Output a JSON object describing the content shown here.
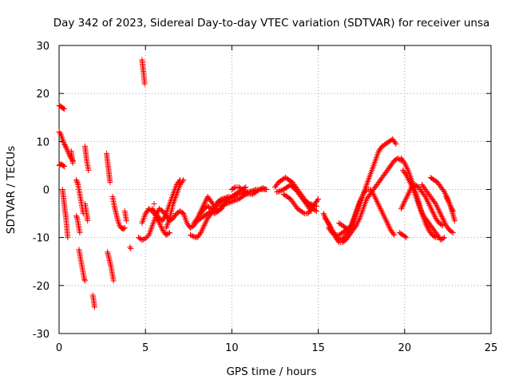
{
  "chart_data": {
    "type": "scatter",
    "title": "Day 342 of 2023, Sidereal Day-to-day VTEC variation (SDTVAR) for receiver unsa",
    "xlabel": "GPS time / hours",
    "ylabel": "SDTVAR / TECUs",
    "xlim": [
      0,
      25
    ],
    "ylim": [
      -30,
      30
    ],
    "x_ticks": [
      "0",
      "5",
      "10",
      "15",
      "20",
      "25"
    ],
    "y_ticks": [
      "30",
      "20",
      "10",
      "0",
      "-10",
      "-20",
      "-30"
    ],
    "grid": true,
    "marker": "+",
    "series": [
      {
        "name": "SDTVAR",
        "color": "#ff0000",
        "segments": [
          {
            "x": [
              0.0,
              0.1,
              0.2,
              0.3
            ],
            "y": [
              17.5,
              17.3,
              17.0,
              16.8
            ]
          },
          {
            "x": [
              0.0,
              0.1,
              0.2,
              0.3,
              0.4,
              0.5,
              0.6,
              0.7,
              0.8
            ],
            "y": [
              12.0,
              11.5,
              10.5,
              9.5,
              8.8,
              8.0,
              7.2,
              6.5,
              6.0
            ]
          },
          {
            "x": [
              0.0,
              0.1,
              0.2,
              0.3
            ],
            "y": [
              5.0,
              5.3,
              5.1,
              4.8
            ]
          },
          {
            "x": [
              0.2,
              0.25,
              0.3,
              0.35,
              0.4,
              0.45,
              0.5
            ],
            "y": [
              0.0,
              -1.5,
              -3.0,
              -4.5,
              -6.0,
              -8.0,
              -10.0
            ]
          },
          {
            "x": [
              0.7,
              0.75,
              0.8
            ],
            "y": [
              8.0,
              6.5,
              5.5
            ]
          },
          {
            "x": [
              1.0,
              1.05,
              1.1,
              1.15,
              1.2,
              1.25,
              1.3,
              1.35,
              1.4
            ],
            "y": [
              2.0,
              1.5,
              1.0,
              0.0,
              -1.0,
              -2.0,
              -3.0,
              -4.0,
              -5.0
            ]
          },
          {
            "x": [
              1.0,
              1.05,
              1.1,
              1.15,
              1.2
            ],
            "y": [
              -5.5,
              -6.0,
              -7.0,
              -8.0,
              -9.0
            ]
          },
          {
            "x": [
              1.15,
              1.2,
              1.25,
              1.3,
              1.35,
              1.4,
              1.45,
              1.5
            ],
            "y": [
              -12.5,
              -13.5,
              -14.5,
              -15.5,
              -16.5,
              -17.5,
              -18.5,
              -19.0
            ]
          },
          {
            "x": [
              1.5,
              1.55,
              1.6,
              1.65,
              1.7
            ],
            "y": [
              9.0,
              7.5,
              6.0,
              5.0,
              4.0
            ]
          },
          {
            "x": [
              1.5,
              1.55,
              1.6,
              1.65
            ],
            "y": [
              -3.0,
              -4.0,
              -5.0,
              -6.5
            ]
          },
          {
            "x": [
              1.95,
              2.0,
              2.05
            ],
            "y": [
              -22.0,
              -23.0,
              -24.5
            ]
          },
          {
            "x": [
              2.75,
              2.8,
              2.85,
              2.9,
              2.95
            ],
            "y": [
              7.5,
              6.0,
              4.5,
              3.0,
              1.5
            ]
          },
          {
            "x": [
              2.8,
              2.9,
              3.0,
              3.05,
              3.1,
              3.15
            ],
            "y": [
              -13.0,
              -14.5,
              -16.0,
              -17.0,
              -18.0,
              -19.0
            ]
          },
          {
            "x": [
              3.1,
              3.15,
              3.2,
              3.3,
              3.4,
              3.5,
              3.6,
              3.7,
              3.8
            ],
            "y": [
              -1.5,
              -2.5,
              -3.5,
              -5.0,
              -6.5,
              -7.5,
              -8.0,
              -8.2,
              -8.0
            ]
          },
          {
            "x": [
              3.8,
              3.85,
              3.9
            ],
            "y": [
              -4.5,
              -5.5,
              -6.5
            ]
          },
          {
            "x": [
              4.1,
              4.15
            ],
            "y": [
              -12.0,
              -12.3
            ]
          },
          {
            "x": [
              4.8,
              4.85,
              4.9,
              4.95
            ],
            "y": [
              27.0,
              25.5,
              24.0,
              22.0
            ]
          },
          {
            "x": [
              4.6,
              4.8,
              5.0,
              5.2,
              5.4,
              5.6,
              5.8,
              6.0,
              6.2,
              6.4,
              6.6,
              6.8,
              7.0,
              7.2
            ],
            "y": [
              -10.0,
              -10.5,
              -10.2,
              -9.5,
              -7.5,
              -5.5,
              -4.0,
              -4.5,
              -5.5,
              -6.5,
              -6.0,
              -5.0,
              -4.5,
              -5.0
            ]
          },
          {
            "x": [
              4.8,
              5.0,
              5.2,
              5.4,
              5.6,
              5.8,
              6.0,
              6.2,
              6.4
            ],
            "y": [
              -7.0,
              -5.0,
              -4.0,
              -4.5,
              -5.5,
              -7.0,
              -8.5,
              -9.5,
              -9.0
            ]
          },
          {
            "x": [
              5.4,
              5.6,
              5.8,
              6.0,
              6.2,
              6.4,
              6.6,
              6.8,
              7.0
            ],
            "y": [
              -4.0,
              -5.0,
              -6.0,
              -6.5,
              -5.0,
              -3.0,
              -1.0,
              1.0,
              2.0
            ]
          },
          {
            "x": [
              6.2,
              6.4,
              6.6,
              6.8,
              7.0,
              7.2
            ],
            "y": [
              -8.0,
              -6.0,
              -3.0,
              -1.0,
              1.0,
              2.0
            ]
          },
          {
            "x": [
              5.5
            ],
            "y": [
              -3.0
            ]
          },
          {
            "x": [
              7.2,
              7.4,
              7.6,
              7.8,
              8.0,
              8.2,
              8.4,
              8.6,
              8.8,
              9.0,
              9.2,
              9.4,
              9.6,
              9.8,
              10.0,
              10.2,
              10.4,
              10.6,
              10.8,
              11.0,
              11.2,
              11.4,
              11.6,
              11.8,
              12.0
            ],
            "y": [
              -5.0,
              -7.0,
              -8.0,
              -7.5,
              -6.5,
              -6.0,
              -5.5,
              -5.0,
              -4.5,
              -3.5,
              -2.5,
              -2.0,
              -1.8,
              -1.5,
              -1.5,
              -1.2,
              -1.0,
              -0.8,
              -0.5,
              -0.5,
              -0.3,
              0.0,
              0.0,
              0.0,
              0.0
            ]
          },
          {
            "x": [
              7.6,
              7.8,
              8.0,
              8.2,
              8.4,
              8.6,
              8.8,
              9.0,
              9.2,
              9.4,
              9.6,
              9.8,
              10.0,
              10.2
            ],
            "y": [
              -9.5,
              -9.8,
              -10.0,
              -9.0,
              -7.5,
              -6.0,
              -5.0,
              -4.0,
              -3.0,
              -2.5,
              -2.2,
              -2.0,
              -1.8,
              -1.5
            ]
          },
          {
            "x": [
              7.8,
              8.0,
              8.2,
              8.4,
              8.6,
              8.8,
              9.0,
              9.2,
              9.4,
              9.6,
              9.8,
              10.0,
              10.2,
              10.4,
              10.6,
              10.8
            ],
            "y": [
              -7.0,
              -6.0,
              -4.5,
              -3.0,
              -1.5,
              -2.5,
              -3.5,
              -4.5,
              -4.0,
              -3.0,
              -2.0,
              -1.5,
              -1.0,
              -0.5,
              0.0,
              0.5
            ]
          },
          {
            "x": [
              8.2,
              8.4,
              8.6,
              8.8,
              9.0,
              9.2,
              9.4,
              9.6,
              9.8,
              10.0,
              10.2,
              10.4,
              10.6,
              10.8,
              11.0
            ],
            "y": [
              -5.0,
              -4.0,
              -3.5,
              -4.0,
              -5.0,
              -4.5,
              -3.5,
              -3.0,
              -2.8,
              -2.5,
              -2.2,
              -2.0,
              -1.5,
              -1.0,
              -0.8
            ]
          },
          {
            "x": [
              10.0,
              10.2,
              10.4,
              10.6,
              10.8,
              11.0,
              11.2,
              11.4,
              11.6,
              11.8,
              12.0
            ],
            "y": [
              0.0,
              0.5,
              0.5,
              0.0,
              -0.5,
              -0.8,
              -1.0,
              -0.5,
              0.0,
              0.3,
              0.0
            ]
          },
          {
            "x": [
              12.5,
              12.7,
              12.9,
              13.1,
              13.3,
              13.5,
              13.7,
              13.9,
              14.1,
              14.3,
              14.5,
              14.7,
              14.9
            ],
            "y": [
              0.5,
              1.5,
              2.0,
              2.5,
              2.0,
              1.5,
              0.5,
              -0.5,
              -1.5,
              -2.5,
              -3.5,
              -4.0,
              -4.5
            ]
          },
          {
            "x": [
              12.6,
              12.8,
              13.0,
              13.2,
              13.4,
              13.6,
              13.8,
              14.0,
              14.2,
              14.4,
              14.6
            ],
            "y": [
              -0.5,
              -0.3,
              0.0,
              0.5,
              1.0,
              0.5,
              -0.5,
              -1.5,
              -2.5,
              -3.5,
              -4.5
            ]
          },
          {
            "x": [
              13.0,
              13.2,
              13.4,
              13.6,
              13.8,
              14.0,
              14.2,
              14.4,
              14.6,
              14.8,
              15.0
            ],
            "y": [
              -1.0,
              -1.5,
              -2.0,
              -3.0,
              -4.0,
              -4.5,
              -5.0,
              -5.0,
              -4.0,
              -3.0,
              -2.0
            ]
          },
          {
            "x": [
              13.5,
              13.7,
              13.9,
              14.1,
              14.3,
              14.5,
              14.7,
              14.9
            ],
            "y": [
              0.5,
              0.0,
              -1.0,
              -2.0,
              -2.5,
              -3.0,
              -3.2,
              -3.5
            ]
          },
          {
            "x": [
              15.3,
              15.5,
              15.7,
              15.9,
              16.1,
              16.3,
              16.5,
              16.7,
              16.9,
              17.1,
              17.3,
              17.5,
              17.7,
              17.9,
              18.1,
              18.3,
              18.5,
              18.7,
              18.9,
              19.1,
              19.3,
              19.5
            ],
            "y": [
              -5.0,
              -6.5,
              -8.0,
              -9.0,
              -10.0,
              -10.5,
              -10.0,
              -9.0,
              -8.0,
              -6.0,
              -4.0,
              -2.0,
              0.0,
              2.0,
              4.0,
              6.0,
              8.0,
              9.0,
              9.5,
              10.0,
              10.5,
              9.5
            ]
          },
          {
            "x": [
              15.4,
              15.6,
              15.8,
              16.0,
              16.2,
              16.4,
              16.6,
              16.8,
              17.0,
              17.2,
              17.4,
              17.6,
              17.8,
              18.0,
              18.2,
              18.4,
              18.6,
              18.8,
              19.0,
              19.2,
              19.4,
              19.6,
              19.8
            ],
            "y": [
              -6.0,
              -7.0,
              -8.5,
              -10.0,
              -11.0,
              -11.0,
              -10.5,
              -9.5,
              -8.5,
              -7.5,
              -6.0,
              -4.0,
              -2.0,
              -1.0,
              0.0,
              1.0,
              2.0,
              3.0,
              4.0,
              5.0,
              6.0,
              6.5,
              6.0
            ]
          },
          {
            "x": [
              15.6,
              15.8,
              16.0,
              16.2,
              16.4,
              16.6,
              16.8,
              17.0,
              17.2,
              17.4,
              17.6,
              17.8,
              18.0,
              18.2,
              18.4,
              18.6,
              18.8,
              19.0,
              19.2,
              19.4
            ],
            "y": [
              -8.0,
              -9.0,
              -9.5,
              -9.5,
              -9.0,
              -8.5,
              -8.0,
              -7.0,
              -5.0,
              -3.0,
              -1.0,
              0.0,
              0.0,
              -1.0,
              -2.5,
              -4.0,
              -5.5,
              -7.0,
              -8.5,
              -9.5
            ]
          },
          {
            "x": [
              16.2,
              16.4,
              16.6,
              16.8,
              17.0,
              17.2,
              17.4,
              17.6,
              17.8
            ],
            "y": [
              -7.0,
              -7.5,
              -8.0,
              -8.5,
              -6.5,
              -4.5,
              -2.5,
              -1.0,
              0.0
            ]
          },
          {
            "x": [
              19.8,
              20.0,
              20.2,
              20.4,
              20.6,
              20.8,
              21.0,
              21.2,
              21.4,
              21.6,
              21.8,
              22.0
            ],
            "y": [
              6.5,
              5.5,
              4.0,
              2.0,
              0.0,
              -2.5,
              -5.0,
              -7.0,
              -8.5,
              -9.5,
              -10.0,
              -10.0
            ]
          },
          {
            "x": [
              19.9,
              20.1,
              20.3,
              20.5,
              20.7,
              20.9,
              21.1,
              21.3,
              21.5,
              21.7,
              21.9,
              22.1,
              22.3
            ],
            "y": [
              4.0,
              3.0,
              1.5,
              0.0,
              -2.0,
              -4.0,
              -5.5,
              -6.5,
              -7.5,
              -8.5,
              -9.5,
              -10.5,
              -10.0
            ]
          },
          {
            "x": [
              19.7,
              19.9,
              20.1
            ],
            "y": [
              -9.0,
              -9.5,
              -10.0
            ]
          },
          {
            "x": [
              19.8,
              20.0,
              20.2,
              20.4,
              20.6,
              20.8,
              21.0,
              21.2,
              21.4,
              21.6,
              21.8,
              22.0,
              22.2
            ],
            "y": [
              -4.0,
              -2.5,
              -1.0,
              0.5,
              1.0,
              0.5,
              -0.5,
              -1.5,
              -3.0,
              -4.5,
              -6.0,
              -7.0,
              -7.5
            ]
          },
          {
            "x": [
              21.0,
              21.2,
              21.4,
              21.6,
              21.8,
              22.0,
              22.2,
              22.4,
              22.6,
              22.8
            ],
            "y": [
              1.0,
              0.0,
              -1.0,
              -2.0,
              -3.0,
              -4.5,
              -6.0,
              -7.5,
              -8.5,
              -9.0
            ]
          },
          {
            "x": [
              21.5,
              21.7,
              21.9,
              22.1,
              22.3,
              22.5,
              22.7,
              22.9
            ],
            "y": [
              2.5,
              2.0,
              1.5,
              0.5,
              -0.5,
              -2.0,
              -4.0,
              -6.5
            ]
          },
          {
            "x": [
              22.4,
              22.6,
              22.8
            ],
            "y": [
              -1.5,
              -3.0,
              -4.5
            ]
          }
        ]
      }
    ]
  }
}
